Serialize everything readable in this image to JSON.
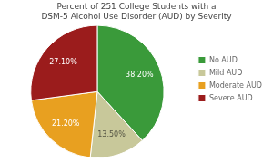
{
  "chart_data": {
    "type": "pie",
    "title": "Percent of 251 College Students with a\nDSM-5 Alcohol Use Disorder (AUD) by Severity",
    "categories": [
      "No AUD",
      "Mild AUD",
      "Moderate AUD",
      "Severe AUD"
    ],
    "values": [
      38.2,
      13.5,
      21.2,
      27.1
    ],
    "value_labels": [
      "38.20%",
      "13.50%",
      "21.20%",
      "27.10%"
    ],
    "colors": [
      "#3a9a3a",
      "#c8c89a",
      "#e8a020",
      "#9b1c1c"
    ],
    "data_labels": true,
    "legend": "right"
  }
}
